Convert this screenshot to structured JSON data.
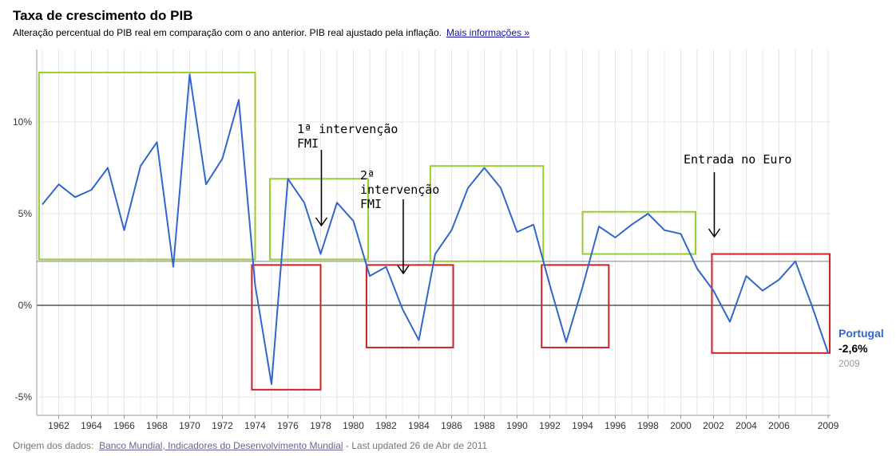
{
  "header": {
    "title": "Taxa de crescimento do PIB",
    "subtitle": "Alteração percentual do PIB real em comparação com o ano anterior. PIB real ajustado pela inflação.",
    "more_link": "Mais informações »"
  },
  "footer": {
    "source_label": "Origem dos dados:",
    "source_link": "Banco Mundial, Indicadores do Desenvolvimento Mundial",
    "updated": " - Last updated 26 de Abr de 2011"
  },
  "legend": {
    "country": "Portugal",
    "last_value": "-2,6%",
    "last_year": "2009"
  },
  "colors": {
    "series": "#3366cc",
    "growth_box": "#99cc33",
    "recession_box": "#cc2222",
    "reference_line": "#aaaaaa",
    "grid": "#e6e6e6"
  },
  "chart_data": {
    "type": "line",
    "title": "Taxa de crescimento do PIB",
    "xlabel": "",
    "ylabel": "",
    "xlim": [
      1961,
      2009
    ],
    "ylim": [
      -6,
      13.5
    ],
    "y_ticks": [
      {
        "value": 10,
        "label": "10%"
      },
      {
        "value": 5,
        "label": "5%"
      },
      {
        "value": 0,
        "label": "0%"
      },
      {
        "value": -5,
        "label": "-5%"
      }
    ],
    "x_ticks": [
      {
        "value": 1962,
        "label": "1962"
      },
      {
        "value": 1964,
        "label": "1964"
      },
      {
        "value": 1966,
        "label": "1966"
      },
      {
        "value": 1968,
        "label": "1968"
      },
      {
        "value": 1970,
        "label": "1970"
      },
      {
        "value": 1972,
        "label": "1972"
      },
      {
        "value": 1974,
        "label": "1974"
      },
      {
        "value": 1976,
        "label": "1976"
      },
      {
        "value": 1978,
        "label": "1978"
      },
      {
        "value": 1980,
        "label": "1980"
      },
      {
        "value": 1982,
        "label": "1982"
      },
      {
        "value": 1984,
        "label": "1984"
      },
      {
        "value": 1986,
        "label": "1986"
      },
      {
        "value": 1988,
        "label": "1988"
      },
      {
        "value": 1990,
        "label": "1990"
      },
      {
        "value": 1992,
        "label": "1992"
      },
      {
        "value": 1994,
        "label": "1994"
      },
      {
        "value": 1996,
        "label": "1996"
      },
      {
        "value": 1998,
        "label": "1998"
      },
      {
        "value": 2000,
        "label": "2000"
      },
      {
        "value": 2002,
        "label": "2002"
      },
      {
        "value": 2004,
        "label": "2004"
      },
      {
        "value": 2006,
        "label": "2006"
      },
      {
        "value": 2009,
        "label": "2009"
      }
    ],
    "grid": true,
    "series": [
      {
        "name": "Portugal",
        "x": [
          1961,
          1962,
          1963,
          1964,
          1965,
          1966,
          1967,
          1968,
          1969,
          1970,
          1971,
          1972,
          1973,
          1974,
          1975,
          1976,
          1977,
          1978,
          1979,
          1980,
          1981,
          1982,
          1983,
          1984,
          1985,
          1986,
          1987,
          1988,
          1989,
          1990,
          1991,
          1992,
          1993,
          1994,
          1995,
          1996,
          1997,
          1998,
          1999,
          2000,
          2001,
          2002,
          2003,
          2004,
          2005,
          2006,
          2007,
          2008,
          2009
        ],
        "y": [
          5.5,
          6.6,
          5.9,
          6.3,
          7.5,
          4.1,
          7.6,
          8.9,
          2.1,
          12.6,
          6.6,
          8.0,
          11.2,
          1.1,
          -4.3,
          6.9,
          5.6,
          2.8,
          5.6,
          4.6,
          1.6,
          2.1,
          -0.2,
          -1.9,
          2.8,
          4.1,
          6.4,
          7.5,
          6.4,
          4.0,
          4.4,
          1.1,
          -2.0,
          1.0,
          4.3,
          3.7,
          4.4,
          5.0,
          4.1,
          3.9,
          2.0,
          0.8,
          -0.9,
          1.6,
          0.8,
          1.4,
          2.4,
          0.0,
          -2.6
        ]
      }
    ],
    "reference_line": 2.4,
    "annotations": [
      {
        "text": "1ª intervenção\nFMI",
        "arrow_year": 1978
      },
      {
        "text": "2ª\nintervenção\nFMI",
        "arrow_year": 1983
      },
      {
        "text": "Entrada no Euro",
        "arrow_year": 2002
      }
    ],
    "highlight_boxes": [
      {
        "kind": "growth",
        "x": [
          1960.8,
          1974
        ],
        "y": [
          2.5,
          12.7
        ]
      },
      {
        "kind": "recession",
        "x": [
          1973.8,
          1978
        ],
        "y": [
          -4.6,
          2.2
        ]
      },
      {
        "kind": "growth",
        "x": [
          1974.9,
          1980.9
        ],
        "y": [
          2.5,
          6.9
        ]
      },
      {
        "kind": "recession",
        "x": [
          1980.8,
          1986.1
        ],
        "y": [
          -2.3,
          2.2
        ]
      },
      {
        "kind": "growth",
        "x": [
          1984.7,
          1991.6
        ],
        "y": [
          2.4,
          7.6
        ]
      },
      {
        "kind": "recession",
        "x": [
          1991.5,
          1995.6
        ],
        "y": [
          -2.3,
          2.2
        ]
      },
      {
        "kind": "growth",
        "x": [
          1994,
          2000.9
        ],
        "y": [
          2.8,
          5.1
        ]
      },
      {
        "kind": "recession",
        "x": [
          2001.9,
          2009.1
        ],
        "y": [
          -2.6,
          2.8
        ]
      }
    ]
  }
}
